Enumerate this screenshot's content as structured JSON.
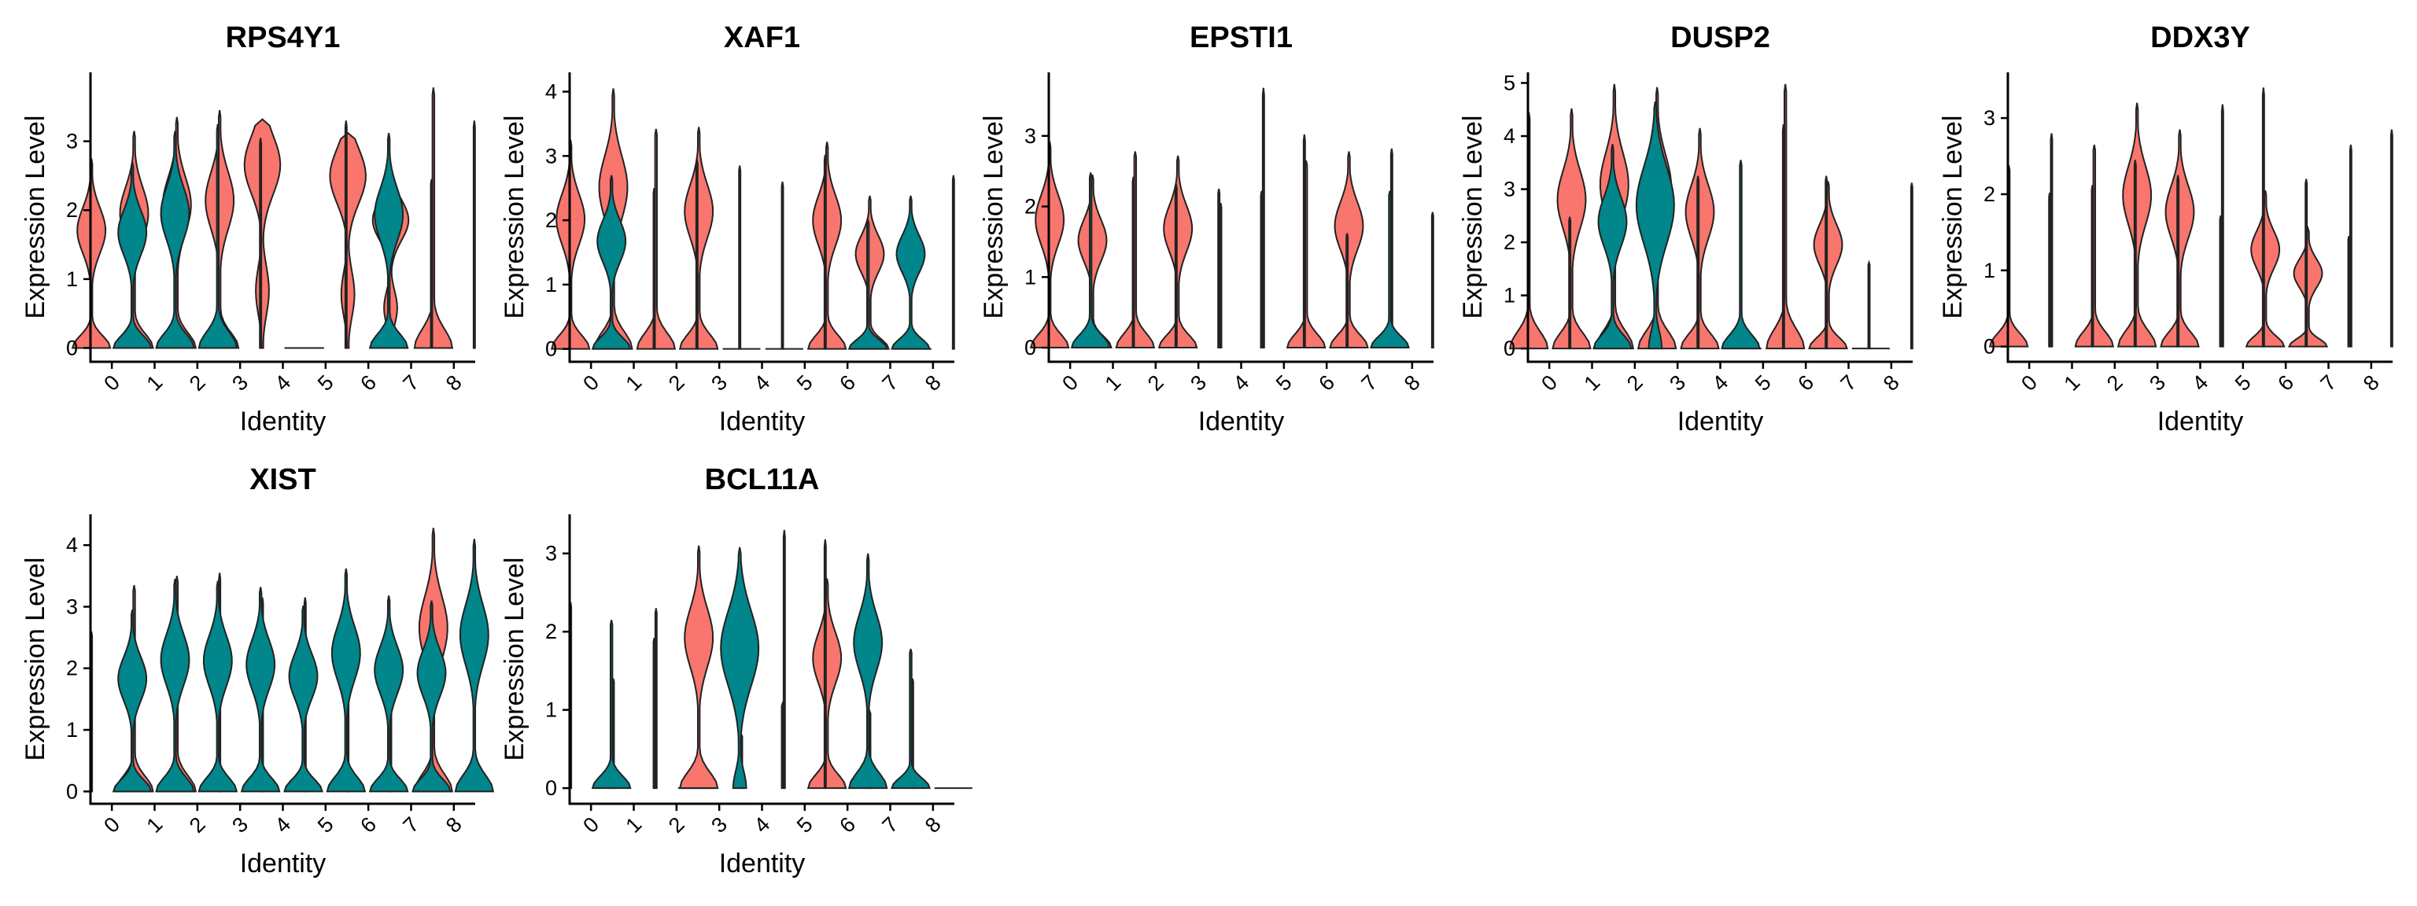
{
  "figure": {
    "colors": {
      "group_a": "#F8766D",
      "group_b": "#00868B"
    }
  },
  "chart_data": [
    {
      "type": "violin",
      "title": "RPS4Y1",
      "xlabel": "Identity",
      "ylabel": "Expression Level",
      "categories": [
        "0",
        "1",
        "2",
        "3",
        "4",
        "5",
        "6",
        "7",
        "8"
      ],
      "y_ticks": [
        0,
        1,
        2,
        3
      ],
      "ylim": [
        -0.2,
        4.0
      ],
      "series": [
        {
          "fill": "#F8766D",
          "values": [
            2.75,
            3.15,
            3.35,
            3.45,
            3.32,
            0.0,
            3.12,
            2.32,
            3.78
          ],
          "shapes": [
            "bimodal",
            "bimodal",
            "bimodal",
            "bimodal",
            "top",
            "flat",
            "top",
            "top",
            "bottom"
          ]
        },
        {
          "fill": "#00868B",
          "values": [
            2.7,
            3.15,
            3.25,
            3.05,
            0.0,
            3.3,
            3.12,
            2.45,
            3.3
          ],
          "shapes": [
            "bimodal",
            "bimodal",
            "bottom",
            "flat",
            "flat",
            "flat",
            "bimodal",
            "flat",
            "flat"
          ]
        }
      ]
    },
    {
      "type": "violin",
      "title": "XAF1",
      "xlabel": "Identity",
      "ylabel": "Expression Level",
      "categories": [
        "0",
        "1",
        "2",
        "3",
        "4",
        "5",
        "6",
        "7",
        "8"
      ],
      "y_ticks": [
        0,
        1,
        2,
        3,
        4
      ],
      "ylim": [
        -0.2,
        4.3
      ],
      "series": [
        {
          "fill": "#F8766D",
          "values": [
            3.25,
            4.05,
            3.42,
            3.45,
            0.0,
            0.0,
            3.22,
            2.38,
            0.0
          ],
          "shapes": [
            "bimodal",
            "bimodal",
            "bottom",
            "bimodal",
            "flat",
            "flat",
            "bimodal",
            "bimodal",
            "flat"
          ]
        },
        {
          "fill": "#00868B",
          "values": [
            2.7,
            2.5,
            2.95,
            2.85,
            2.6,
            3.02,
            2.0,
            2.38,
            2.7
          ],
          "shapes": [
            "bimodal",
            "flat",
            "flat",
            "flat",
            "flat",
            "flat",
            "bottom",
            "bimodal",
            "flat"
          ]
        }
      ]
    },
    {
      "type": "violin",
      "title": "EPSTI1",
      "xlabel": "Identity",
      "ylabel": "Expression Level",
      "categories": [
        "0",
        "1",
        "2",
        "3",
        "4",
        "5",
        "6",
        "7",
        "8"
      ],
      "y_ticks": [
        0,
        1,
        2,
        3
      ],
      "ylim": [
        -0.2,
        3.9
      ],
      "series": [
        {
          "fill": "#F8766D",
          "values": [
            2.92,
            2.45,
            2.78,
            2.72,
            2.05,
            3.68,
            2.65,
            2.78,
            2.82
          ],
          "shapes": [
            "bimodal",
            "bimodal",
            "bottom",
            "bimodal",
            "flat",
            "flat",
            "bottom",
            "bimodal",
            "flat"
          ]
        },
        {
          "fill": "#00868B",
          "values": [
            2.48,
            2.42,
            2.32,
            2.25,
            2.22,
            3.02,
            1.62,
            2.22,
            1.92
          ],
          "shapes": [
            "bottom",
            "flat",
            "flat",
            "flat",
            "flat",
            "flat",
            "flat",
            "bottom",
            "flat"
          ]
        }
      ]
    },
    {
      "type": "violin",
      "title": "DUSP2",
      "xlabel": "Identity",
      "ylabel": "Expression Level",
      "categories": [
        "0",
        "1",
        "2",
        "3",
        "4",
        "5",
        "6",
        "7",
        "8"
      ],
      "y_ticks": [
        0,
        1,
        2,
        3,
        4,
        5
      ],
      "ylim": [
        -0.25,
        5.2
      ],
      "series": [
        {
          "fill": "#F8766D",
          "values": [
            4.45,
            4.52,
            4.98,
            4.92,
            4.15,
            0.0,
            4.98,
            3.15,
            0.0
          ],
          "shapes": [
            "bottom",
            "bimodal",
            "bimodal",
            "bimodal",
            "bimodal",
            "flat",
            "bottom",
            "bimodal",
            "flat"
          ]
        },
        {
          "fill": "#00868B",
          "values": [
            2.48,
            3.85,
            4.65,
            3.25,
            3.55,
            4.22,
            3.25,
            1.62,
            3.12
          ],
          "shapes": [
            "flat",
            "bimodal",
            "upper",
            "flat",
            "bottom",
            "flat",
            "flat",
            "flat",
            "flat"
          ]
        }
      ]
    },
    {
      "type": "violin",
      "title": "DDX3Y",
      "xlabel": "Identity",
      "ylabel": "Expression Level",
      "categories": [
        "0",
        "1",
        "2",
        "3",
        "4",
        "5",
        "6",
        "7",
        "8"
      ],
      "y_ticks": [
        0,
        1,
        2,
        3
      ],
      "ylim": [
        -0.2,
        3.6
      ],
      "series": [
        {
          "fill": "#F8766D",
          "values": [
            2.38,
            2.8,
            2.65,
            3.2,
            2.85,
            3.18,
            2.05,
            1.55,
            2.65
          ],
          "shapes": [
            "bottom",
            "flat",
            "bottom",
            "bimodal",
            "bimodal",
            "flat",
            "bimodal",
            "bimodal",
            "flat"
          ]
        },
        {
          "fill": "#00868B",
          "values": [
            2.02,
            2.12,
            2.45,
            2.25,
            1.72,
            3.4,
            2.2,
            1.45,
            2.85
          ],
          "shapes": [
            "flat",
            "flat",
            "flat",
            "flat",
            "flat",
            "flat",
            "flat",
            "flat",
            "flat"
          ]
        }
      ]
    },
    {
      "type": "violin",
      "title": "XIST",
      "xlabel": "Identity",
      "ylabel": "Expression Level",
      "categories": [
        "0",
        "1",
        "2",
        "3",
        "4",
        "5",
        "6",
        "7",
        "8"
      ],
      "y_ticks": [
        0,
        1,
        2,
        3,
        4
      ],
      "ylim": [
        -0.2,
        4.5
      ],
      "series": [
        {
          "fill": "#F8766D",
          "values": [
            2.6,
            3.35,
            3.5,
            3.55,
            3.15,
            3.15,
            2.82,
            1.5,
            4.28
          ],
          "shapes": [
            "flat",
            "bottom",
            "bottom",
            "flat",
            "flat",
            "flat",
            "flat",
            "flat",
            "bimodal"
          ]
        },
        {
          "fill": "#00868B",
          "values": [
            2.95,
            3.45,
            3.42,
            3.32,
            3.02,
            3.62,
            3.18,
            3.1,
            4.1
          ],
          "shapes": [
            "bimodal",
            "bimodal",
            "bimodal",
            "bimodal",
            "bimodal",
            "bimodal",
            "bimodal",
            "bimodal",
            "bimodal"
          ]
        }
      ]
    },
    {
      "type": "violin",
      "title": "BCL11A",
      "xlabel": "Identity",
      "ylabel": "Expression Level",
      "categories": [
        "0",
        "1",
        "2",
        "3",
        "4",
        "5",
        "6",
        "7",
        "8"
      ],
      "y_ticks": [
        0,
        1,
        2,
        3
      ],
      "ylim": [
        -0.2,
        3.5
      ],
      "series": [
        {
          "fill": "#F8766D",
          "values": [
            2.38,
            1.4,
            2.3,
            3.1,
            0.68,
            3.3,
            2.68,
            0.98,
            1.4
          ],
          "shapes": [
            "flat",
            "flat",
            "flat",
            "bimodal",
            "flat",
            "flat",
            "bimodal",
            "flat",
            "flat"
          ]
        },
        {
          "fill": "#00868B",
          "values": [
            2.15,
            1.92,
            0.0,
            3.08,
            1.08,
            3.18,
            3.0,
            1.78,
            0.0
          ],
          "shapes": [
            "bottom",
            "flat",
            "flat",
            "upper",
            "flat",
            "flat",
            "bimodal",
            "bottom",
            "flat"
          ]
        }
      ]
    }
  ]
}
